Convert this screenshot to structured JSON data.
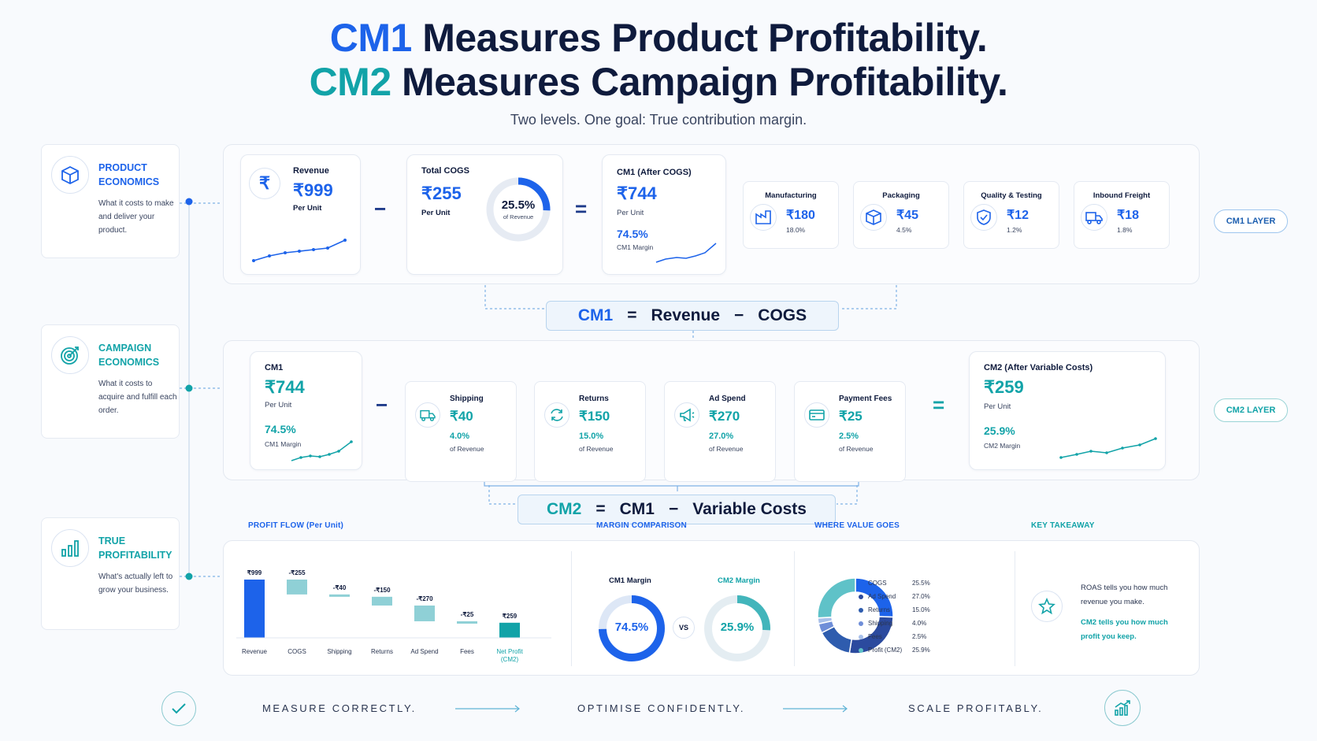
{
  "header": {
    "line1_accent": "CM1",
    "line1_rest": " Measures Product Profitability.",
    "line2_accent": "CM2",
    "line2_rest": " Measures Campaign Profitability.",
    "subtitle": "Two levels. One goal: True contribution margin."
  },
  "sidebar": [
    {
      "icon": "box-icon",
      "title": "PRODUCT ECONOMICS",
      "desc": "What it costs to make and deliver your product."
    },
    {
      "icon": "target-icon",
      "title": "CAMPAIGN ECONOMICS",
      "desc": "What it costs to acquire and fulfill each order."
    },
    {
      "icon": "bar-chart-icon",
      "title": "TRUE PROFITABILITY",
      "desc": "What's actually left to grow your business."
    }
  ],
  "cm1_layer": {
    "label": "CM1 LAYER",
    "revenue": {
      "label": "Revenue",
      "value": "₹999",
      "unit": "Per Unit"
    },
    "cogs": {
      "label": "Total COGS",
      "value": "₹255",
      "unit": "Per Unit",
      "pct": "25.5%",
      "pct_label": "of Revenue",
      "pct_value": 25.5
    },
    "cm1": {
      "label": "CM1 (After COGS)",
      "value": "₹744",
      "unit": "Per Unit",
      "margin": "74.5%",
      "margin_label": "CM1 Margin"
    },
    "minus": "−",
    "equals": "=",
    "components": [
      {
        "name": "Manufacturing",
        "value": "₹180",
        "pct": "18.0%",
        "icon": "factory-icon"
      },
      {
        "name": "Packaging",
        "value": "₹45",
        "pct": "4.5%",
        "icon": "package-icon"
      },
      {
        "name": "Quality & Testing",
        "value": "₹12",
        "pct": "1.2%",
        "icon": "shield-check-icon"
      },
      {
        "name": "Inbound Freight",
        "value": "₹18",
        "pct": "1.8%",
        "icon": "truck-icon"
      }
    ],
    "formula": {
      "a": "CM1",
      "eq": "=",
      "b": "Revenue",
      "op": "−",
      "c": "COGS"
    }
  },
  "cm2_layer": {
    "label": "CM2 LAYER",
    "cm1": {
      "label": "CM1",
      "value": "₹744",
      "unit": "Per Unit",
      "margin": "74.5%",
      "margin_label": "CM1 Margin"
    },
    "minus": "−",
    "equals": "=",
    "costs": [
      {
        "name": "Shipping",
        "value": "₹40",
        "pct": "4.0%",
        "pct_label": "of Revenue",
        "icon": "truck-icon"
      },
      {
        "name": "Returns",
        "value": "₹150",
        "pct": "15.0%",
        "pct_label": "of Revenue",
        "icon": "refresh-icon"
      },
      {
        "name": "Ad Spend",
        "value": "₹270",
        "pct": "27.0%",
        "pct_label": "of Revenue",
        "icon": "megaphone-icon"
      },
      {
        "name": "Payment Fees",
        "value": "₹25",
        "pct": "2.5%",
        "pct_label": "of Revenue",
        "icon": "card-icon"
      }
    ],
    "cm2": {
      "label": "CM2 (After Variable Costs)",
      "value": "₹259",
      "unit": "Per Unit",
      "margin": "25.9%",
      "margin_label": "CM2 Margin"
    },
    "formula": {
      "a": "CM2",
      "eq": "=",
      "b": "CM1",
      "op": "−",
      "c": "Variable Costs"
    }
  },
  "profit_flow": {
    "title": "PROFIT FLOW (Per Unit)",
    "chart_data": {
      "type": "bar",
      "categories": [
        "Revenue",
        "COGS",
        "Shipping",
        "Returns",
        "Ad Spend",
        "Fees",
        "Net Profit (CM2)"
      ],
      "values": [
        999,
        -255,
        -40,
        -150,
        -270,
        -25,
        259
      ],
      "labels": [
        "₹999",
        "-₹255",
        "-₹40",
        "-₹150",
        "-₹270",
        "-₹25",
        "₹259"
      ]
    }
  },
  "margin_comparison": {
    "title": "MARGIN COMPARISON",
    "cm1_label": "CM1 Margin",
    "cm2_label": "CM2 Margin",
    "cm1_value": "74.5%",
    "cm2_value": "25.9%",
    "cm1_pct": 74.5,
    "cm2_pct": 25.9,
    "vs": "VS"
  },
  "where_value_goes": {
    "title": "WHERE VALUE GOES",
    "chart_data": {
      "type": "pie",
      "labels": [
        "COGS",
        "Ad Spend",
        "Returns",
        "Shipping",
        "Fees",
        "Profit (CM2)"
      ],
      "values": [
        25.5,
        27.0,
        15.0,
        4.0,
        2.5,
        25.9
      ],
      "display": [
        "25.5%",
        "27.0%",
        "15.0%",
        "4.0%",
        "2.5%",
        "25.9%"
      ],
      "colors": [
        "#1d63ea",
        "#2b4a9e",
        "#2e5cae",
        "#6f8ed8",
        "#a8c0ea",
        "#5fc2c8"
      ]
    }
  },
  "key_takeaway": {
    "title": "KEY TAKEAWAY",
    "line1": "ROAS tells you how much revenue you make.",
    "line2": "CM2 tells you how much profit you keep."
  },
  "footer": {
    "m1": "MEASURE CORRECTLY.",
    "m2": "OPTIMISE CONFIDENTLY.",
    "m3": "SCALE PROFITABLY."
  },
  "colors": {
    "blue": "#1d63ea",
    "teal": "#12a3a8",
    "navy": "#0f1b3d"
  }
}
